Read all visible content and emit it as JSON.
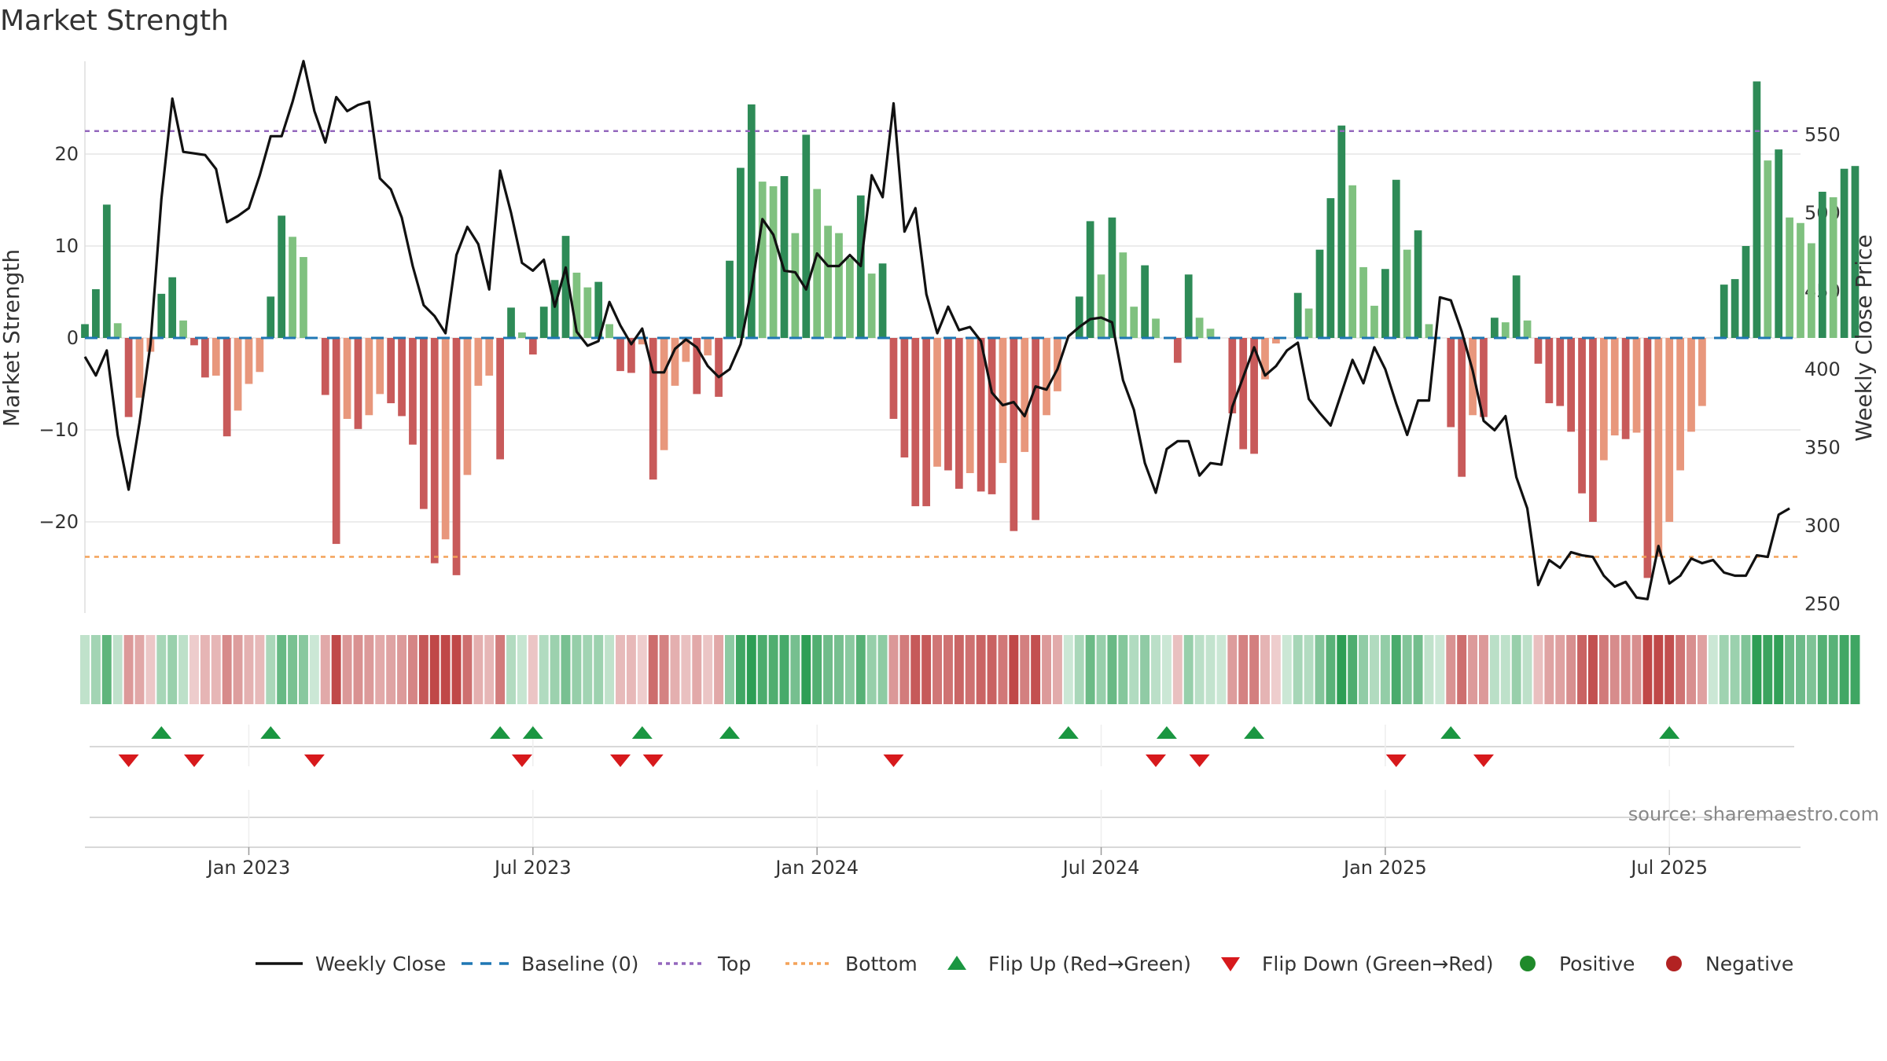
{
  "chart_data": {
    "type": "bar",
    "title": "Market Strength",
    "ylabel_left": "Market Strength",
    "ylabel_right": "Weekly Close Price",
    "source": "source: sharemaestro.com",
    "x_ticks": [
      "Jan 2023",
      "Jul 2023",
      "Jan 2024",
      "Jul 2024",
      "Jan 2025",
      "Jul 2025"
    ],
    "x_tick_weeks": [
      15,
      41,
      67,
      93,
      119,
      145
    ],
    "x_range_weeks": [
      0,
      157
    ],
    "y_left": {
      "ticks": [
        -20,
        -10,
        0,
        10,
        20
      ],
      "tick_labels": [
        "−20",
        "−10",
        "0",
        "10",
        "20"
      ],
      "range": [
        -30,
        30
      ]
    },
    "y_right": {
      "ticks": [
        250,
        300,
        350,
        400,
        450,
        500,
        550
      ],
      "range": [
        243,
        600
      ]
    },
    "top_level": 22.5,
    "bottom_level": -23.8,
    "baseline": 0,
    "strength": [
      1.5,
      5.3,
      14.5,
      1.6,
      -8.6,
      -6.5,
      -1.5,
      4.8,
      6.6,
      1.9,
      -0.8,
      -4.3,
      -4.1,
      -10.7,
      -7.9,
      -5.0,
      -3.7,
      4.5,
      13.3,
      11.0,
      8.8,
      0,
      -6.2,
      -22.4,
      -8.8,
      -9.9,
      -8.4,
      -6.1,
      -7.1,
      -8.5,
      -11.6,
      -18.6,
      -24.5,
      -21.9,
      -25.8,
      -14.9,
      -5.2,
      -4.1,
      -13.2,
      3.3,
      0.6,
      -1.8,
      3.4,
      6.3,
      11.1,
      7.1,
      5.5,
      6.1,
      1.5,
      -3.6,
      -3.8,
      -0.7,
      -15.4,
      -12.2,
      -5.2,
      -2.6,
      -6.1,
      -1.9,
      -6.4,
      8.4,
      18.5,
      25.4,
      17.0,
      16.5,
      17.6,
      11.4,
      22.1,
      16.2,
      12.2,
      11.4,
      8.7,
      15.5,
      7.0,
      8.1,
      -8.8,
      -13.0,
      -18.3,
      -18.3,
      -14.0,
      -14.4,
      -16.4,
      -14.7,
      -16.7,
      -17.0,
      -13.6,
      -21.0,
      -12.4,
      -19.8,
      -8.4,
      -5.8,
      0,
      4.5,
      12.7,
      6.9,
      13.1,
      9.3,
      3.4,
      7.9,
      2.1,
      0,
      -2.7,
      6.9,
      2.2,
      1.0,
      0,
      -8.2,
      -12.1,
      -12.6,
      -4.5,
      -0.6,
      0,
      4.9,
      3.2,
      9.6,
      15.2,
      23.1,
      16.6,
      7.7,
      3.5,
      7.5,
      17.2,
      9.6,
      11.7,
      1.5,
      0,
      -9.7,
      -15.1,
      -8.4,
      -8.6,
      2.2,
      1.7,
      6.8,
      1.9,
      -2.8,
      -7.1,
      -7.4,
      -10.2,
      -16.9,
      -20.0,
      -13.3,
      -10.6,
      -11.0,
      -10.3,
      -26.1,
      -23.8,
      -20.0,
      -14.4,
      -10.2,
      -7.4,
      0,
      5.8,
      6.4,
      10.0,
      27.9,
      19.3,
      20.5,
      13.1,
      12.5,
      10.3,
      15.9,
      15.3,
      18.4,
      18.7
    ],
    "weekly_close": [
      408,
      396,
      412,
      358,
      323,
      366,
      416,
      509,
      573,
      539,
      538,
      537,
      528,
      494,
      498,
      503,
      524,
      549,
      549,
      571,
      597,
      565,
      545,
      574,
      565,
      569,
      571,
      522,
      515,
      497,
      466,
      441,
      434,
      423,
      473,
      491,
      480,
      451,
      527,
      500,
      468,
      463,
      470,
      440,
      465,
      424,
      415,
      418,
      443,
      428,
      416,
      426,
      398,
      398,
      413,
      419,
      414,
      402,
      395,
      400,
      416,
      451,
      496,
      486,
      463,
      462,
      451,
      474,
      466,
      466,
      473,
      466,
      524,
      510,
      570,
      488,
      503,
      448,
      423,
      440,
      425,
      427,
      418,
      385,
      377,
      379,
      370,
      389,
      387,
      400,
      421,
      427,
      432,
      433,
      430,
      393,
      374,
      340,
      321,
      349,
      354,
      354,
      332,
      340,
      339,
      376,
      395,
      414,
      396,
      402,
      412,
      417,
      381,
      372,
      364,
      385,
      406,
      391,
      414,
      400,
      378,
      358,
      380,
      380,
      446,
      444,
      424,
      399,
      367,
      361,
      370,
      331,
      311,
      262,
      278,
      273,
      283,
      281,
      280,
      268,
      261,
      264,
      254,
      253,
      287,
      263,
      268,
      279,
      276,
      278,
      270,
      268,
      268,
      281,
      280,
      307,
      311
    ],
    "flip_up_weeks": [
      7,
      17,
      38,
      41,
      51,
      59,
      90,
      99,
      107,
      125,
      145
    ],
    "flip_down_weeks": [
      4,
      10,
      21,
      40,
      49,
      52,
      74,
      98,
      102,
      120,
      128
    ],
    "legend": [
      "Weekly Close",
      "Baseline (0)",
      "Top",
      "Bottom",
      "Flip Up (Red→Green)",
      "Flip Down (Green→Red)",
      "Positive",
      "Negative"
    ],
    "colors": {
      "positive_strong": "#2e8b57",
      "positive_light": "#7fc17f",
      "negative_strong": "#c85a5a",
      "negative_light": "#e8977c",
      "close_line": "#111111",
      "baseline": "#1f77b4",
      "top": "#9467bd",
      "bottom": "#f4a259",
      "flip_up": "#1a9641",
      "flip_down": "#d7191c",
      "positive_dot": "#1f8a2a",
      "negative_dot": "#b22222",
      "grid": "#e6e6e6",
      "source": "#888888"
    }
  }
}
